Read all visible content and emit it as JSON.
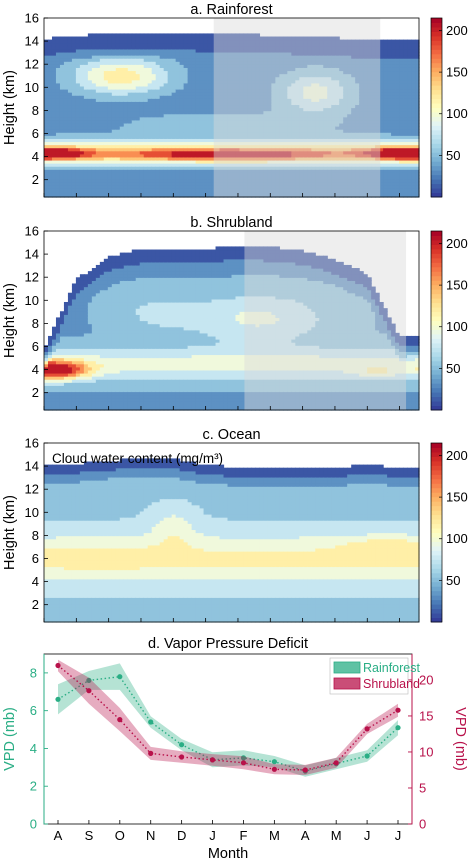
{
  "figure": {
    "months": [
      "A",
      "S",
      "O",
      "N",
      "D",
      "J",
      "F",
      "M",
      "A",
      "M",
      "J",
      "J"
    ]
  },
  "contour_panels": [
    {
      "title": "a. Rainforest",
      "ylabel": "Height (km)",
      "yticks": [
        2,
        4,
        6,
        8,
        10,
        12,
        14,
        16
      ],
      "ylim": [
        0.5,
        16
      ],
      "colorbar_ticks": [
        50,
        100,
        150,
        200
      ],
      "colorbar_range": [
        0,
        215
      ],
      "annotation": "",
      "shaded_months": [
        5.25,
        10.4
      ],
      "top_km": [
        14.2,
        14.5,
        14.6,
        14.6,
        14.7,
        14.7,
        14.6,
        14.5,
        14.4,
        14.3,
        14.0,
        14.1,
        14.0
      ],
      "features": [
        {
          "x": 0,
          "y": 4.3,
          "sx": 1.3,
          "sy": 0.55,
          "v": 140
        },
        {
          "x": 5.8,
          "y": 4.2,
          "sx": 3.6,
          "sy": 0.55,
          "v": 110
        },
        {
          "x": 11.4,
          "y": 4.3,
          "sx": 1.4,
          "sy": 0.55,
          "v": 150
        },
        {
          "x": 2.4,
          "y": 11,
          "sx": 1.5,
          "sy": 1.6,
          "v": 90
        },
        {
          "x": 8.4,
          "y": 9.6,
          "sx": 1.1,
          "sy": 1.8,
          "v": 65
        },
        {
          "x": 5.5,
          "y": 6.8,
          "sx": 3.5,
          "sy": 1.2,
          "v": 25
        }
      ],
      "baseline": {
        "a": 30,
        "peak": 88,
        "center": 4.4,
        "width": 1.1
      }
    },
    {
      "title": "b. Shrubland",
      "ylabel": "Height (km)",
      "yticks": [
        2,
        4,
        6,
        8,
        10,
        12,
        14,
        16
      ],
      "ylim": [
        0.5,
        16
      ],
      "colorbar_ticks": [
        50,
        100,
        150,
        200
      ],
      "colorbar_range": [
        0,
        215
      ],
      "annotation": "",
      "shaded_months": [
        6.2,
        11.2
      ],
      "top_km": [
        5.8,
        11.8,
        13.8,
        14.4,
        14.4,
        14.4,
        14.8,
        14.6,
        14.3,
        13.5,
        12.3,
        6.8,
        7.2
      ],
      "features": [
        {
          "x": 0.3,
          "y": 4.0,
          "sx": 1.0,
          "sy": 0.8,
          "v": 150
        },
        {
          "x": 6.6,
          "y": 8.5,
          "sx": 2.2,
          "sy": 2.2,
          "v": 50
        },
        {
          "x": 3.4,
          "y": 9.0,
          "sx": 1.4,
          "sy": 2.0,
          "v": 25
        },
        {
          "x": 10.3,
          "y": 3.8,
          "sx": 0.6,
          "sy": 0.5,
          "v": 30
        },
        {
          "x": 11.9,
          "y": 4.0,
          "sx": 0.5,
          "sy": 0.5,
          "v": 30
        }
      ],
      "baseline": {
        "a": 40,
        "peak": 55,
        "center": 4.5,
        "width": 1.4
      }
    },
    {
      "title": "c. Ocean",
      "ylabel": "Height (km)",
      "yticks": [
        2,
        4,
        6,
        8,
        10,
        12,
        14,
        16
      ],
      "ylim": [
        0.5,
        16
      ],
      "colorbar_ticks": [
        50,
        100,
        150,
        200
      ],
      "colorbar_range": [
        0,
        215
      ],
      "annotation": "Cloud water content (mg/m³)",
      "shaded_months": [],
      "top_km": [
        14.2,
        14.2,
        14.5,
        14.6,
        14.6,
        14.1,
        13.9,
        13.9,
        13.8,
        13.9,
        14.1,
        13.9,
        13.8
      ],
      "features": [
        {
          "x": 4.0,
          "y": 8.8,
          "sx": 0.7,
          "sy": 1.8,
          "v": 30
        },
        {
          "x": 10.6,
          "y": 7.2,
          "sx": 1.4,
          "sy": 0.8,
          "v": 25
        },
        {
          "x": 1.8,
          "y": 6.2,
          "sx": 1.8,
          "sy": 1.0,
          "v": 10
        }
      ],
      "baseline": {
        "a": 60,
        "peak": 52,
        "center": 6.0,
        "width": 2.2
      }
    }
  ],
  "chart_data": {
    "type": "line",
    "title": "d. Vapor Pressure Deficit",
    "xlabel": "Month",
    "ylabel_left": "VPD (mb)",
    "ylabel_right": "VPD (mb)",
    "categories": [
      "A",
      "S",
      "O",
      "N",
      "D",
      "J",
      "F",
      "M",
      "A",
      "M",
      "J",
      "J"
    ],
    "ylim_left": [
      0,
      9
    ],
    "ylim_right": [
      0,
      23.6
    ],
    "yticks_left": [
      0,
      2,
      4,
      6,
      8
    ],
    "yticks_right": [
      0,
      5,
      10,
      15,
      20
    ],
    "legend_position": "top-right",
    "series": [
      {
        "name": "Rainforest",
        "axis": "left",
        "color": "#2aae85",
        "values": [
          6.6,
          7.6,
          7.8,
          5.4,
          4.2,
          3.4,
          3.5,
          3.3,
          2.8,
          3.2,
          3.6,
          5.1
        ],
        "band": [
          0.8,
          0.5,
          0.7,
          0.3,
          0.3,
          0.4,
          0.4,
          0.3,
          0.3,
          0.3,
          0.3,
          0.4
        ]
      },
      {
        "name": "Shrubland",
        "axis": "right",
        "color": "#b8114a",
        "values": [
          22,
          18.5,
          14.5,
          9.8,
          9.3,
          8.9,
          8.5,
          7.6,
          7.5,
          8.5,
          13.2,
          15.8
        ],
        "band": [
          0.8,
          1.8,
          1.6,
          0.9,
          0.8,
          0.8,
          0.9,
          0.7,
          0.7,
          0.7,
          0.7,
          0.9
        ]
      }
    ]
  }
}
